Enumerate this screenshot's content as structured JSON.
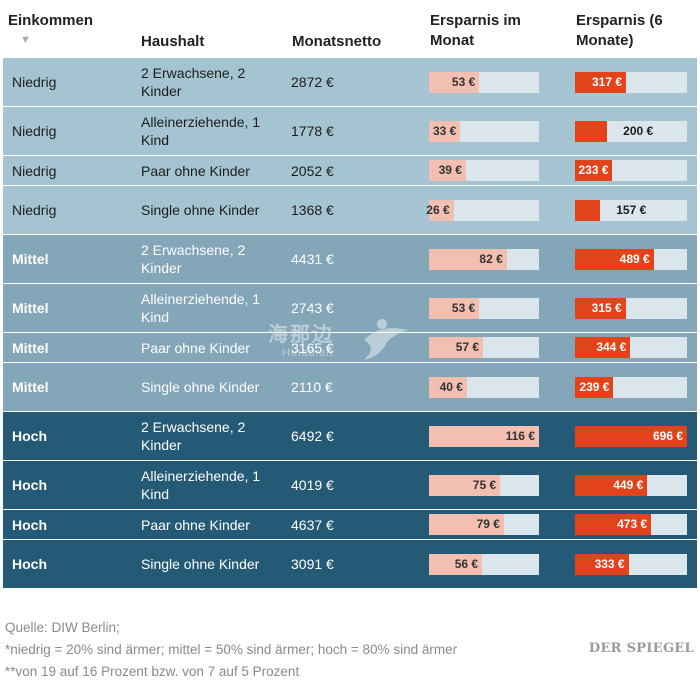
{
  "headers": {
    "income": "Einkommen",
    "household": "Haushalt",
    "net": "Monatsnetto",
    "monthly": "Ersparnis im Monat",
    "six": "Ersparnis (6 Monate)"
  },
  "sort_icon": "sort-down-icon",
  "max_monthly": 116,
  "max_six": 696,
  "rows": [
    {
      "income": "Niedrig",
      "household": "2 Erwachsene, 2 Kinder",
      "net": "2872 €",
      "monthly": 53,
      "monthly_label": "53 €",
      "six": 317,
      "six_label": "317 €"
    },
    {
      "income": "Niedrig",
      "household": "Alleinerziehende, 1 Kind",
      "net": "1778 €",
      "monthly": 33,
      "monthly_label": "33 €",
      "six": 200,
      "six_label": "200 €"
    },
    {
      "income": "Niedrig",
      "household": "Paar ohne Kinder",
      "net": "2052 €",
      "monthly": 39,
      "monthly_label": "39 €",
      "six": 233,
      "six_label": "233 €"
    },
    {
      "income": "Niedrig",
      "household": "Single ohne Kinder",
      "net": "1368 €",
      "monthly": 26,
      "monthly_label": "26 €",
      "six": 157,
      "six_label": "157 €"
    },
    {
      "income": "Mittel",
      "household": "2 Erwachsene, 2 Kinder",
      "net": "4431 €",
      "monthly": 82,
      "monthly_label": "82 €",
      "six": 489,
      "six_label": "489 €"
    },
    {
      "income": "Mittel",
      "household": "Alleinerziehende, 1 Kind",
      "net": "2743 €",
      "monthly": 53,
      "monthly_label": "53 €",
      "six": 315,
      "six_label": "315 €"
    },
    {
      "income": "Mittel",
      "household": "Paar ohne Kinder",
      "net": "3165 €",
      "monthly": 57,
      "monthly_label": "57 €",
      "six": 344,
      "six_label": "344 €"
    },
    {
      "income": "Mittel",
      "household": "Single ohne Kinder",
      "net": "2110 €",
      "monthly": 40,
      "monthly_label": "40 €",
      "six": 239,
      "six_label": "239 €"
    },
    {
      "income": "Hoch",
      "household": "2 Erwachsene, 2 Kinder",
      "net": "6492 €",
      "monthly": 116,
      "monthly_label": "116 €",
      "six": 696,
      "six_label": "696 €"
    },
    {
      "income": "Hoch",
      "household": "Alleinerziehende, 1 Kind",
      "net": "4019 €",
      "monthly": 75,
      "monthly_label": "75 €",
      "six": 449,
      "six_label": "449 €"
    },
    {
      "income": "Hoch",
      "household": "Paar ohne Kinder",
      "net": "4637 €",
      "monthly": 79,
      "monthly_label": "79 €",
      "six": 473,
      "six_label": "473 €"
    },
    {
      "income": "Hoch",
      "household": "Single ohne Kinder",
      "net": "3091 €",
      "monthly": 56,
      "monthly_label": "56 €",
      "six": 333,
      "six_label": "333 €"
    }
  ],
  "notes": [
    "Quelle: DIW Berlin;",
    "*niedrig = 20% sind ärmer; mittel = 50% sind ärmer; hoch = 80% sind ärmer",
    "**von 19 auf 16 Prozent bzw. von 7 auf 5 Prozent"
  ],
  "brand": "DER SPIEGEL",
  "watermark": {
    "text": "海那边",
    "sub": "Hinabian"
  },
  "colors": {
    "low": "#a3c4d0",
    "mid": "#83a6b8",
    "high": "#245a75",
    "monthly_fill": "#f2bfb1",
    "six_fill": "#e3431a",
    "bar_track": "#dbe6ec"
  }
}
